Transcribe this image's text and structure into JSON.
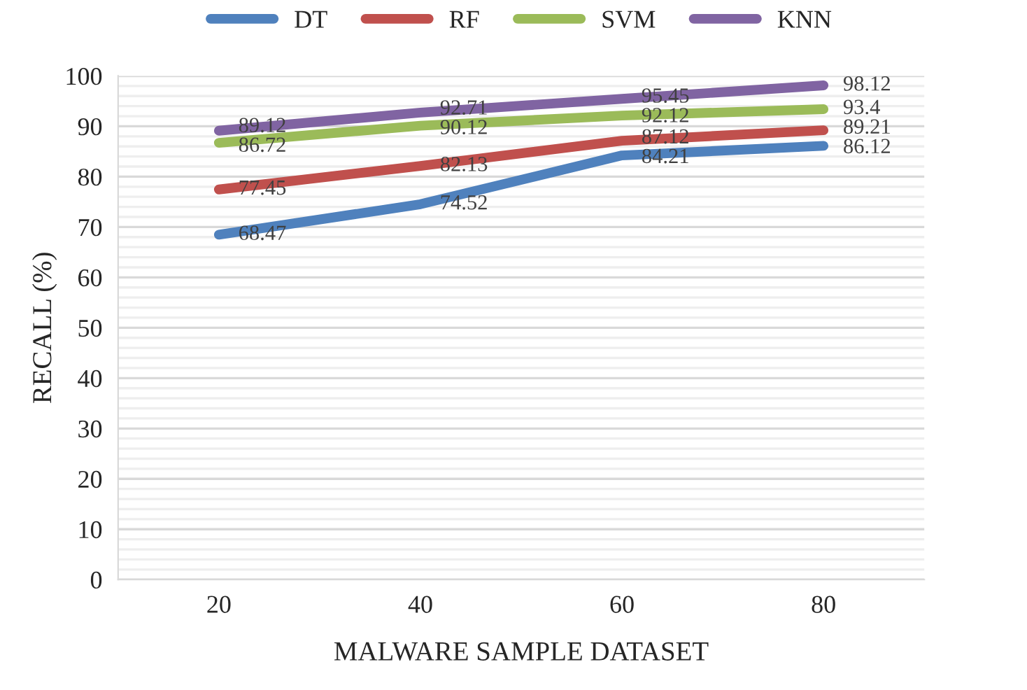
{
  "chart_data": {
    "type": "line",
    "xlabel": "MALWARE SAMPLE DATASET",
    "ylabel": "RECALL (%)",
    "categories": [
      "20",
      "40",
      "60",
      "80"
    ],
    "series": [
      {
        "name": "DT",
        "color": "#4f81bd",
        "values": [
          68.47,
          74.52,
          84.21,
          86.12
        ]
      },
      {
        "name": "RF",
        "color": "#c0504d",
        "values": [
          77.45,
          82.13,
          87.12,
          89.21
        ]
      },
      {
        "name": "SVM",
        "color": "#9bbb59",
        "values": [
          86.72,
          90.12,
          92.12,
          93.4
        ]
      },
      {
        "name": "KNN",
        "color": "#8064a2",
        "values": [
          89.12,
          92.71,
          95.45,
          98.12
        ]
      }
    ],
    "ylim": [
      0,
      100
    ],
    "yticks": [
      0,
      10,
      20,
      30,
      40,
      50,
      60,
      70,
      80,
      90,
      100
    ],
    "grid": "y",
    "legend": "top",
    "marker": "none",
    "line_style": "solid",
    "data_labels": true
  }
}
